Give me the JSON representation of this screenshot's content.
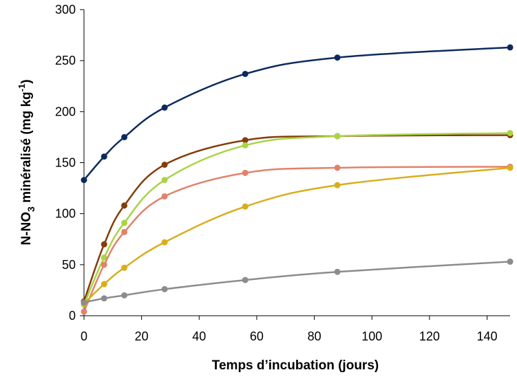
{
  "chart_data": {
    "type": "line",
    "xlabel": "Temps d’incubation (jours)",
    "ylabel": {
      "prefix": "N-NO",
      "sub": "3",
      "middle": " minéralisé (mg kg",
      "sup": "-1",
      "suffix": ")"
    },
    "xlim": [
      0,
      148
    ],
    "ylim": [
      0,
      300
    ],
    "xticks": [
      0,
      20,
      40,
      60,
      80,
      100,
      120,
      140
    ],
    "yticks": [
      0,
      50,
      100,
      150,
      200,
      250,
      300
    ],
    "grid": false,
    "legend": "none",
    "x": [
      0,
      7,
      14,
      28,
      56,
      88,
      148
    ],
    "series": [
      {
        "color": "#0d2a5e",
        "values": [
          133,
          156,
          175,
          204,
          237,
          253,
          263
        ]
      },
      {
        "color": "#843c0c",
        "values": [
          14,
          70,
          108,
          148,
          172,
          176,
          177
        ]
      },
      {
        "color": "#a9d444",
        "values": [
          11,
          57,
          91,
          133,
          167,
          176,
          179
        ]
      },
      {
        "color": "#e2826a",
        "values": [
          4,
          50,
          82,
          117,
          140,
          145,
          146
        ]
      },
      {
        "color": "#d9ad1c",
        "values": [
          12,
          31,
          47,
          72,
          107,
          128,
          145
        ]
      },
      {
        "color": "#8c8c8c",
        "values": [
          13,
          17,
          20,
          26,
          35,
          43,
          53
        ]
      }
    ]
  }
}
